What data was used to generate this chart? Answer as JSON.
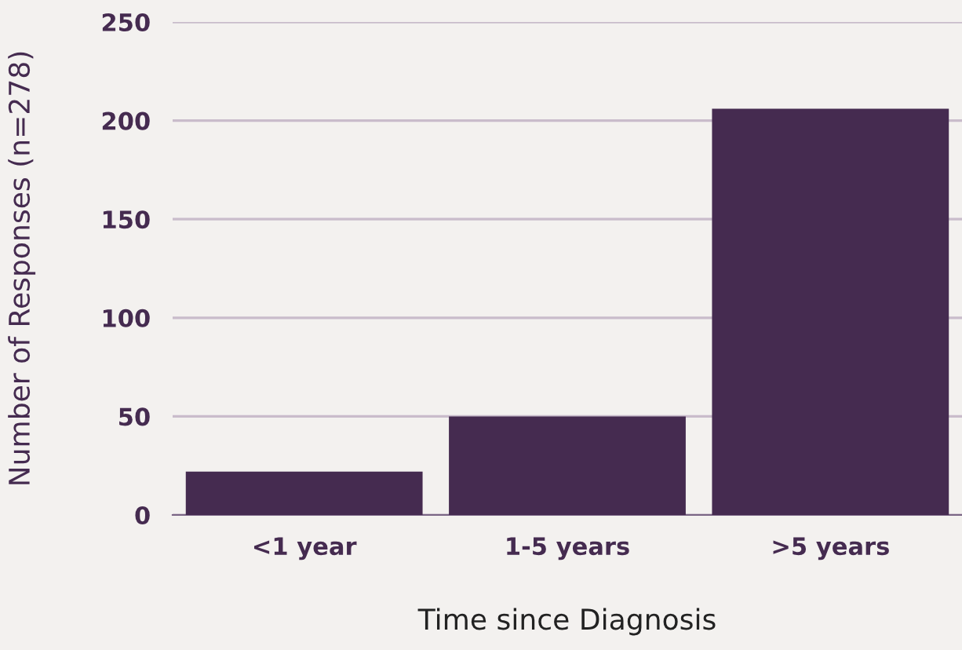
{
  "chart_data": {
    "type": "bar",
    "xlabel": "Time since Diagnosis",
    "ylabel": "Number of Responses (n=278)",
    "categories": [
      "<1 year",
      "1-5 years",
      ">5 years"
    ],
    "values": [
      22,
      50,
      206
    ],
    "color": "#452b50",
    "ylim": [
      0,
      250
    ],
    "yticks": [
      0,
      50,
      100,
      150,
      200,
      250
    ],
    "grid": "y"
  }
}
